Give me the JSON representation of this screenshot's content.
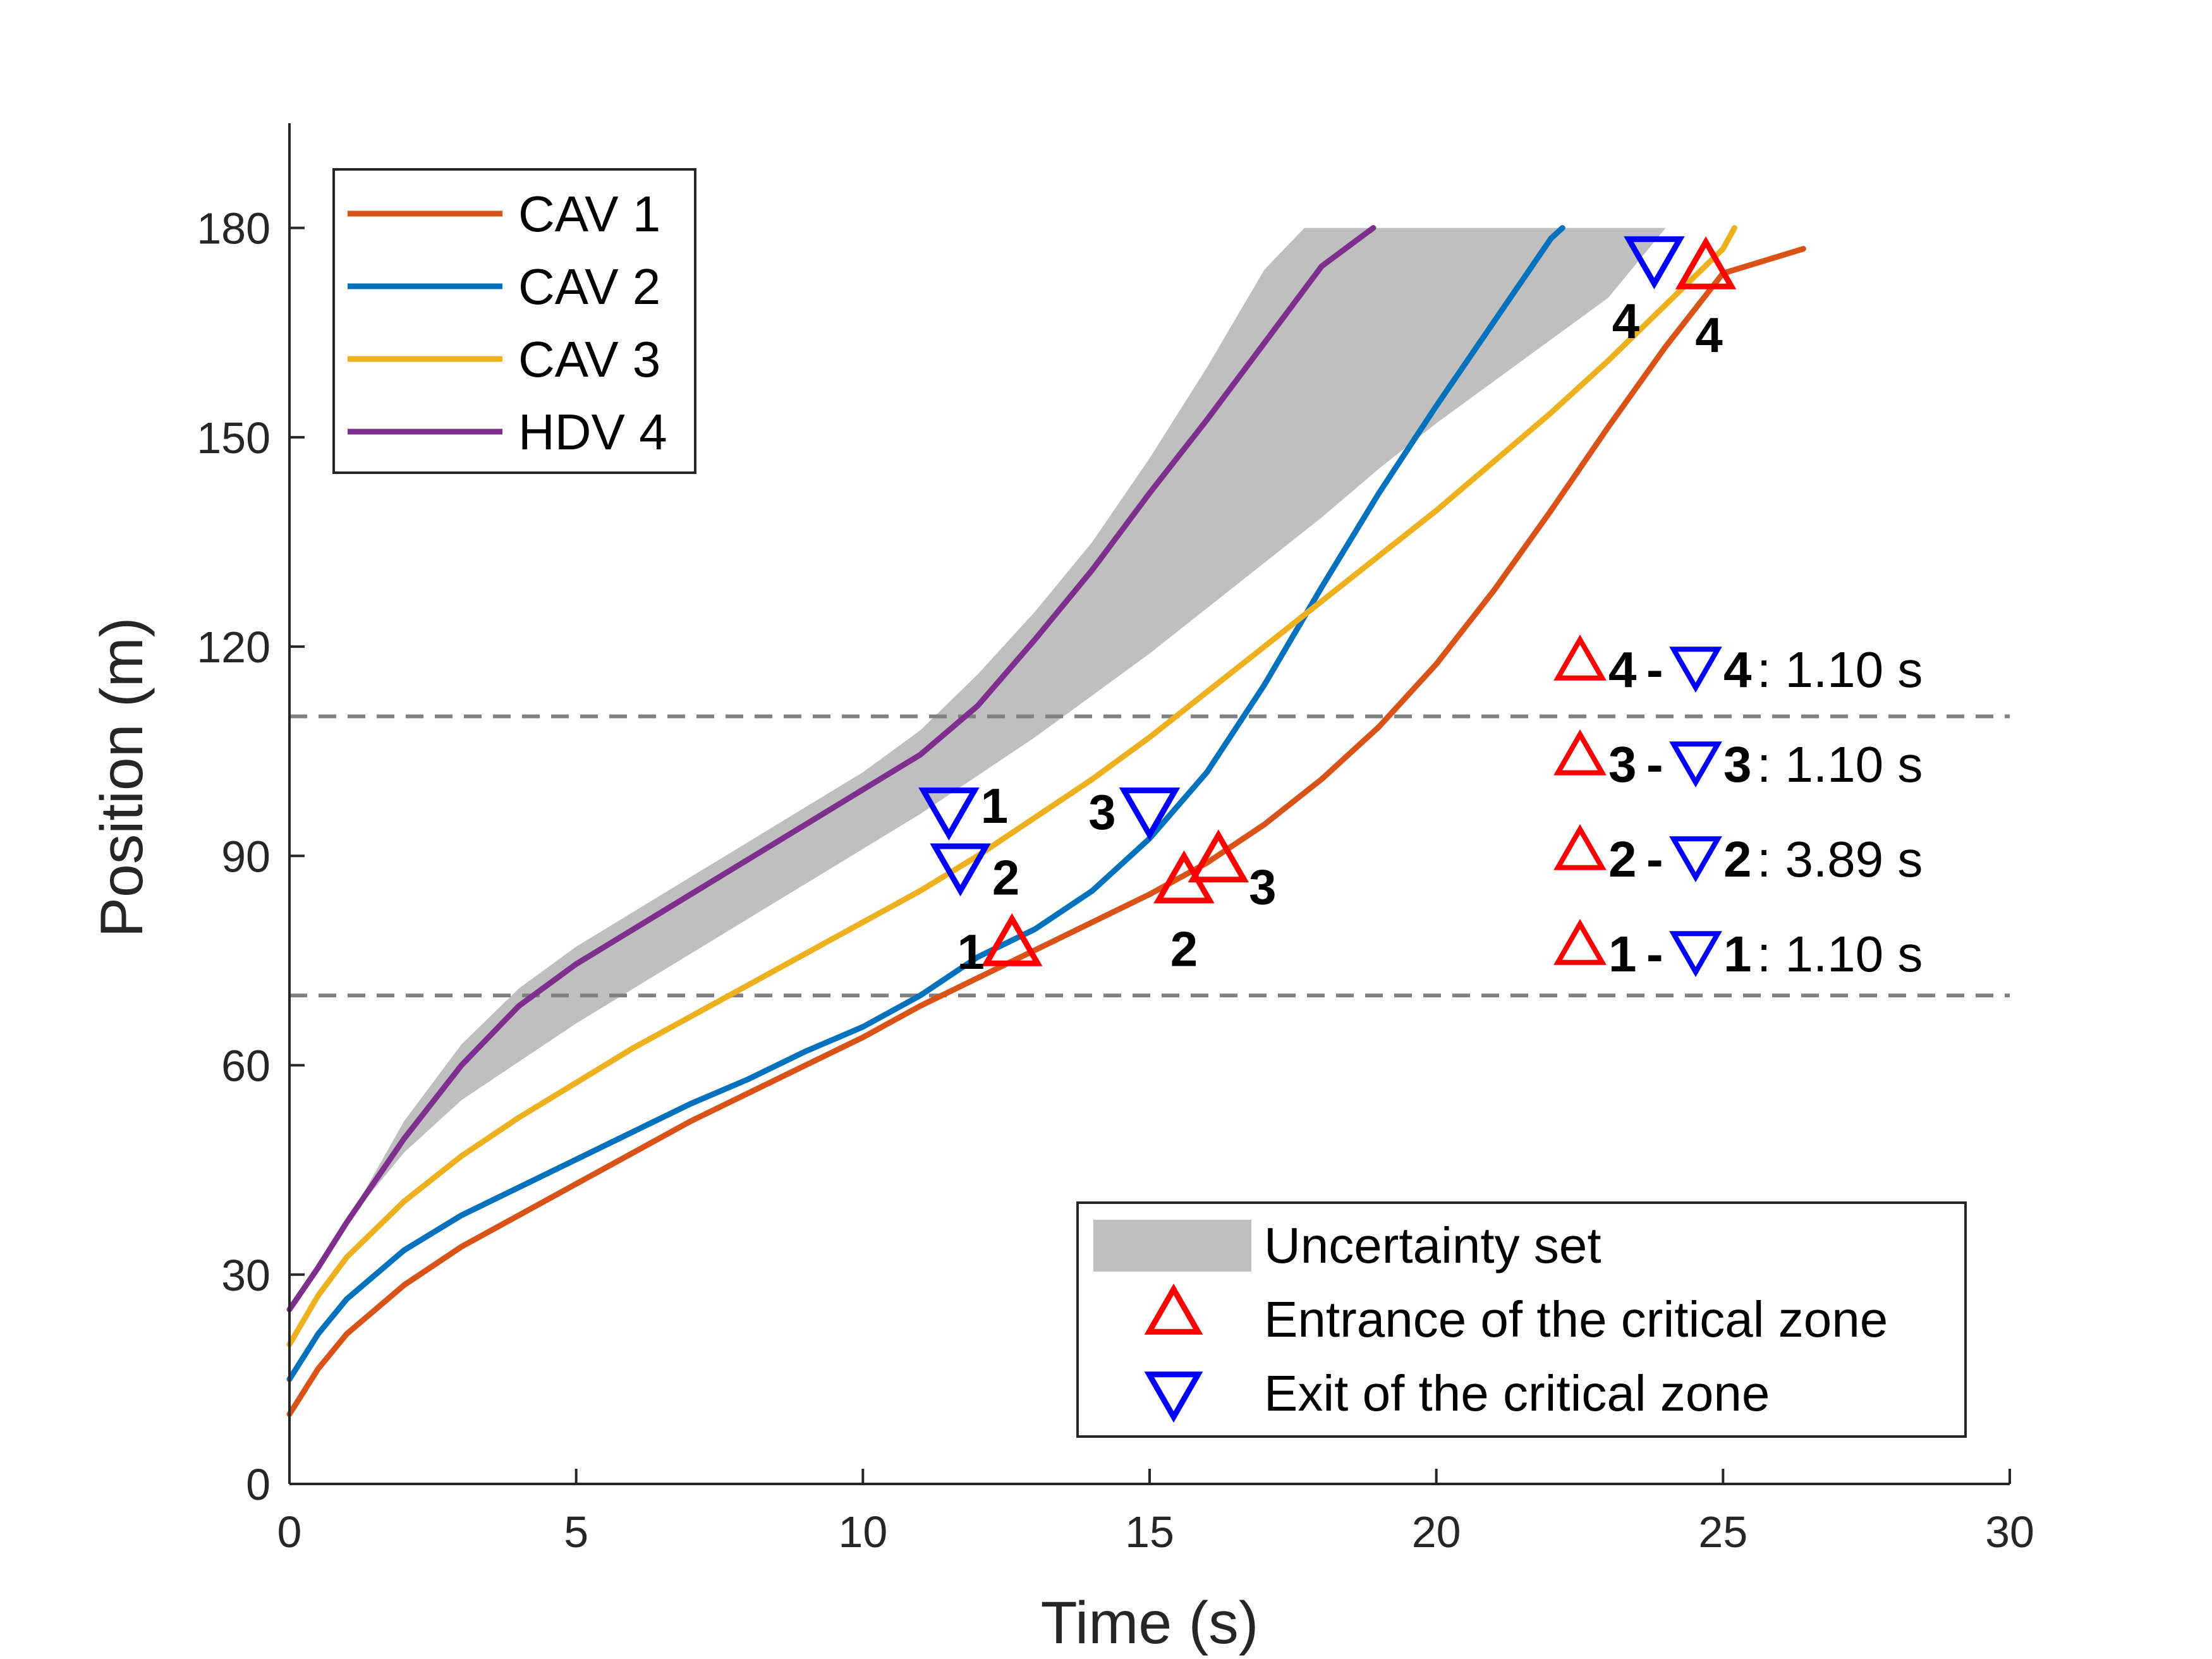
{
  "chart_data": {
    "type": "line",
    "xlabel": "Time (s)",
    "ylabel": "Position (m)",
    "xlim": [
      0,
      30
    ],
    "ylim": [
      0,
      195
    ],
    "xticks": [
      0,
      5,
      10,
      15,
      20,
      25,
      30
    ],
    "yticks": [
      0,
      30,
      60,
      90,
      120,
      150,
      180
    ],
    "critical_zone_bounds": [
      70,
      110
    ],
    "colors": {
      "cav1": "#D95319",
      "cav2": "#0072BD",
      "cav3": "#EDB120",
      "hdv4": "#7E2F8E",
      "uncertainty": "#BFBFBF",
      "entrance": "#FF0000",
      "exit": "#0000FF",
      "dashed": "#808080"
    },
    "series": [
      {
        "name": "CAV 1",
        "color_key": "cav1",
        "x": [
          0,
          0.5,
          1,
          2,
          3,
          4,
          5,
          6,
          7,
          8,
          9,
          10,
          11,
          12,
          13,
          14,
          15,
          16,
          17,
          18,
          19,
          20,
          21,
          22,
          23,
          24,
          25,
          26,
          26.4
        ],
        "y": [
          10,
          16.5,
          21.5,
          28.5,
          34,
          38.5,
          43,
          47.5,
          52,
          56,
          60,
          64,
          68.5,
          72.5,
          76.5,
          80.5,
          84.5,
          89,
          94.5,
          101,
          108.5,
          117.5,
          128,
          139.5,
          151.5,
          163,
          173.5,
          176,
          177
        ]
      },
      {
        "name": "CAV 2",
        "color_key": "cav2",
        "x": [
          0,
          0.5,
          1,
          2,
          3,
          4,
          5,
          6,
          7,
          8,
          9,
          10,
          11,
          12,
          13,
          14,
          15,
          16,
          17,
          18,
          19,
          20,
          21,
          22,
          22.2
        ],
        "y": [
          15,
          21.5,
          26.5,
          33.5,
          38.5,
          42.5,
          46.5,
          50.5,
          54.5,
          58,
          62,
          65.5,
          70,
          75.5,
          79.5,
          85,
          92.5,
          102,
          114.5,
          128.5,
          142,
          154.5,
          166.5,
          178.5,
          180
        ]
      },
      {
        "name": "CAV 3",
        "color_key": "cav3",
        "x": [
          0,
          0.5,
          1,
          2,
          3,
          4,
          5,
          6,
          7,
          8,
          9,
          10,
          11,
          12,
          13,
          14,
          15,
          16,
          17,
          18,
          19,
          20,
          21,
          22,
          23,
          24,
          25,
          25.2
        ],
        "y": [
          20,
          27,
          32.5,
          40.5,
          47,
          52.5,
          57.5,
          62.5,
          67,
          71.5,
          76,
          80.5,
          85,
          90,
          95.5,
          101,
          107,
          113.5,
          120,
          126.5,
          133,
          139.5,
          146.5,
          153.5,
          161,
          169,
          177,
          180
        ]
      },
      {
        "name": "HDV 4",
        "color_key": "hdv4",
        "x": [
          0,
          0.5,
          1,
          2,
          3,
          4,
          5,
          6,
          7,
          8,
          9,
          10,
          11,
          12,
          13,
          14,
          15,
          16,
          17,
          18,
          18.9
        ],
        "y": [
          25,
          31,
          37.5,
          49.5,
          60,
          68.5,
          74.5,
          79.5,
          84.5,
          89.5,
          94.5,
          99.5,
          104.5,
          111.5,
          121,
          131,
          142,
          152.5,
          163.5,
          174.5,
          180
        ]
      }
    ],
    "uncertainty_set": {
      "upper": {
        "x": [
          0,
          1,
          2,
          3,
          4,
          5,
          6,
          7,
          8,
          9,
          10,
          11,
          12,
          13,
          14,
          15,
          16,
          17,
          17.7,
          24
        ],
        "y": [
          25,
          37.5,
          52,
          63,
          71,
          77,
          82,
          87,
          92,
          97,
          102,
          108,
          116,
          125,
          135,
          147,
          160,
          174,
          180,
          180
        ]
      },
      "lower": {
        "x": [
          0,
          1,
          2,
          3,
          4,
          5,
          6,
          7,
          8,
          9,
          10,
          11,
          12,
          13,
          14,
          15,
          16,
          17,
          18,
          19,
          20,
          21,
          22,
          23,
          24
        ],
        "y": [
          25,
          37.5,
          47.5,
          55,
          60.5,
          66,
          71,
          76,
          81,
          86,
          91,
          96,
          101.5,
          107,
          113,
          119,
          125.5,
          132,
          138.5,
          145.5,
          152,
          158,
          164,
          170,
          180
        ]
      }
    },
    "entrance_markers": [
      {
        "label": "1",
        "x": 12.6,
        "y": 77
      },
      {
        "label": "2",
        "x": 15.6,
        "y": 86
      },
      {
        "label": "3",
        "x": 16.2,
        "y": 89
      },
      {
        "label": "4",
        "x": 24.7,
        "y": 174
      }
    ],
    "exit_markers": [
      {
        "label": "1",
        "x": 11.5,
        "y": 97
      },
      {
        "label": "2",
        "x": 11.7,
        "y": 89
      },
      {
        "label": "3",
        "x": 15.0,
        "y": 97
      },
      {
        "label": "4",
        "x": 23.8,
        "y": 176
      }
    ],
    "durations": [
      {
        "entrance": "4",
        "exit": "4",
        "value": ": 1.10 s"
      },
      {
        "entrance": "3",
        "exit": "3",
        "value": ": 1.10 s"
      },
      {
        "entrance": "2",
        "exit": "2",
        "value": ": 3.89 s"
      },
      {
        "entrance": "1",
        "exit": "1",
        "value": ": 1.10 s"
      }
    ],
    "legend_vehicles": [
      "CAV 1",
      "CAV 2",
      "CAV 3",
      "HDV 4"
    ],
    "legend_markers": {
      "uncertainty": "Uncertainty set",
      "entrance": "Entrance of the critical zone",
      "exit": "Exit of the critical zone"
    },
    "dash_sep": "-"
  }
}
